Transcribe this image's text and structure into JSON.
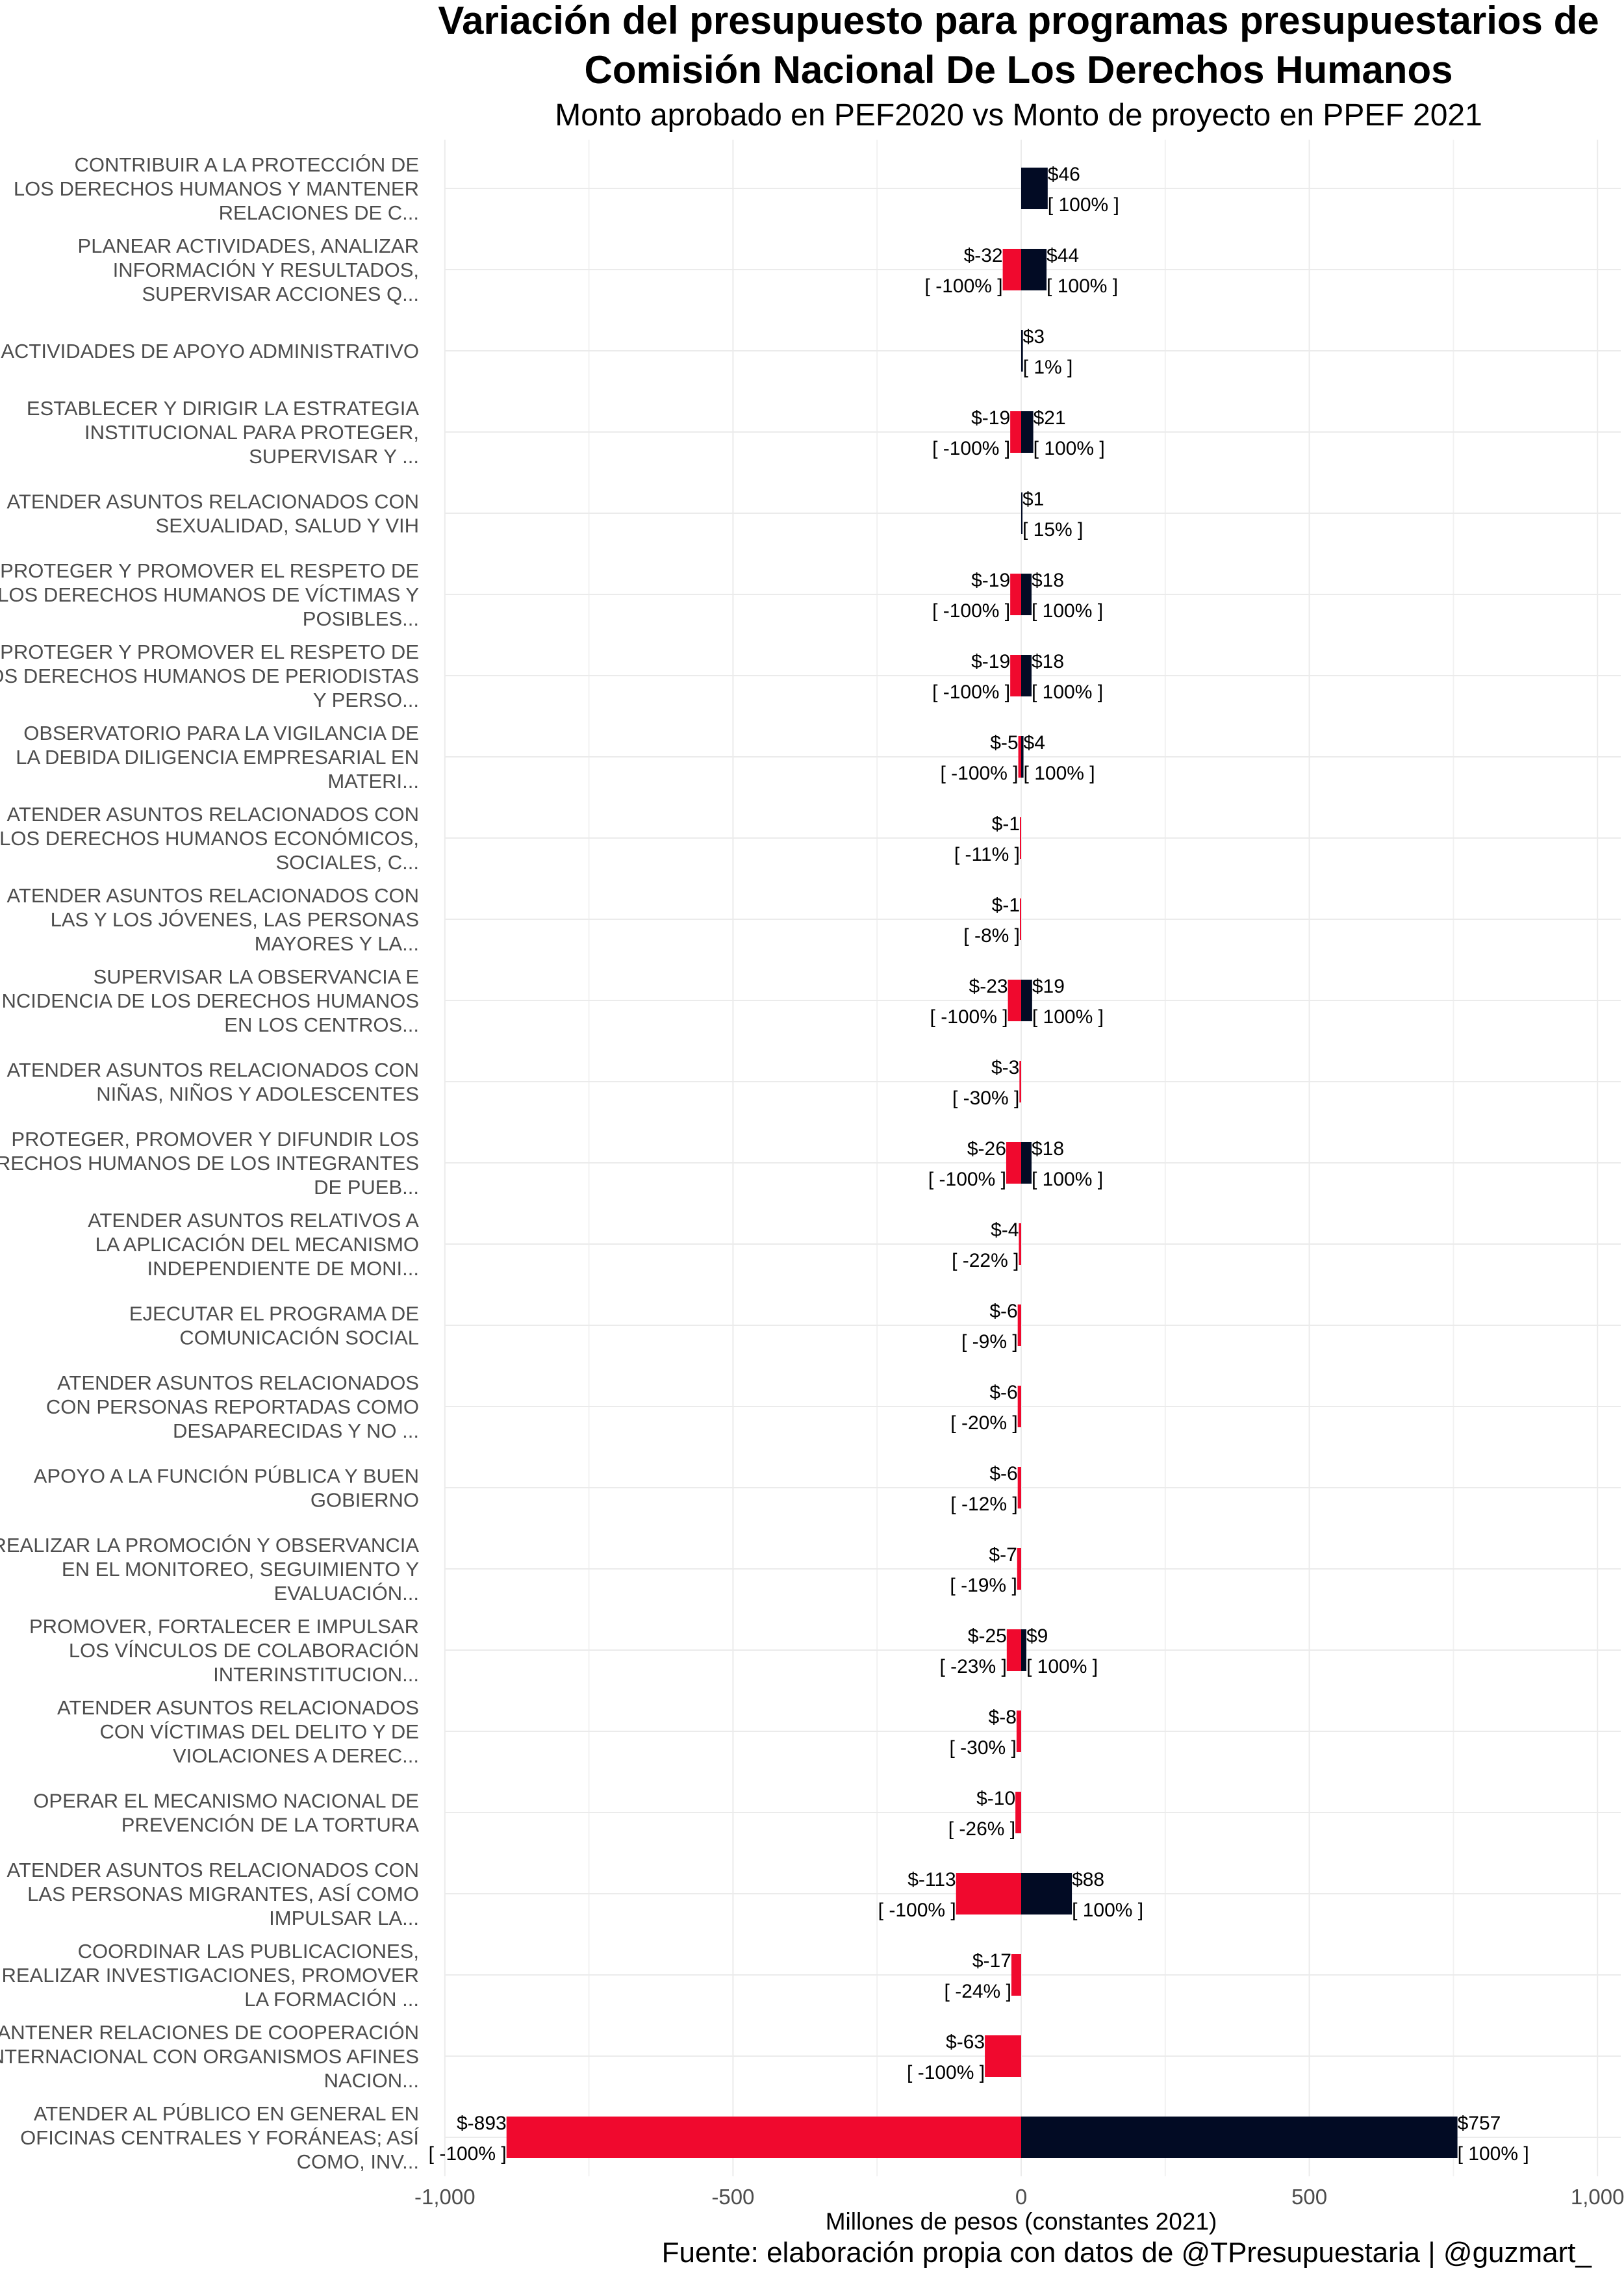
{
  "chart_data": {
    "type": "bar",
    "title_line1": "Variación del presupuesto para programas presupuestarios de",
    "title_line2": "Comisión Nacional De Los Derechos Humanos",
    "subtitle": "Monto aprobado en PEF2020 vs Monto de proyecto en PPEF 2021",
    "xlabel": "Millones de pesos (constantes 2021)",
    "caption": "Fuente: elaboración propia con datos de @TPresupuestaria | @guzmart_",
    "xlim": [
      -1000,
      1000
    ],
    "xticks": [
      -1000,
      -500,
      0,
      500,
      1000
    ],
    "xtick_labels": [
      "-1,000",
      "-500",
      "0",
      "500",
      "1,000"
    ],
    "grid": true,
    "colors": {
      "negative": "#f0092e",
      "positive": "#020b24"
    },
    "categories": [
      {
        "label": [
          "CONTRIBUIR A LA PROTECCIÓN DE",
          "LOS DERECHOS HUMANOS Y MANTENER",
          "RELACIONES DE C..."
        ],
        "negative": null,
        "positive": 46,
        "neg_label": "",
        "neg_pct": "",
        "pos_label": "$46",
        "pos_pct": "[ 100% ]"
      },
      {
        "label": [
          "PLANEAR ACTIVIDADES, ANALIZAR",
          "INFORMACIÓN Y RESULTADOS,",
          "SUPERVISAR ACCIONES Q..."
        ],
        "negative": -32,
        "positive": 44,
        "neg_label": "$-32",
        "neg_pct": "[ -100% ]",
        "pos_label": "$44",
        "pos_pct": "[ 100% ]"
      },
      {
        "label": [
          "ACTIVIDADES DE APOYO ADMINISTRATIVO"
        ],
        "negative": null,
        "positive": 3,
        "neg_label": "",
        "neg_pct": "",
        "pos_label": "$3",
        "pos_pct": "[ 1% ]"
      },
      {
        "label": [
          "ESTABLECER Y DIRIGIR LA ESTRATEGIA",
          "INSTITUCIONAL PARA PROTEGER,",
          "SUPERVISAR Y ..."
        ],
        "negative": -19,
        "positive": 21,
        "neg_label": "$-19",
        "neg_pct": "[ -100% ]",
        "pos_label": "$21",
        "pos_pct": "[ 100% ]"
      },
      {
        "label": [
          "ATENDER ASUNTOS RELACIONADOS CON",
          "SEXUALIDAD, SALUD Y VIH"
        ],
        "negative": null,
        "positive": 1,
        "neg_label": "",
        "neg_pct": "",
        "pos_label": "$1",
        "pos_pct": "[ 15% ]"
      },
      {
        "label": [
          "PROTEGER Y PROMOVER EL RESPETO DE",
          "LOS DERECHOS HUMANOS DE VÍCTIMAS Y",
          "POSIBLES..."
        ],
        "negative": -19,
        "positive": 18,
        "neg_label": "$-19",
        "neg_pct": "[ -100% ]",
        "pos_label": "$18",
        "pos_pct": "[ 100% ]"
      },
      {
        "label": [
          "PROTEGER Y PROMOVER EL RESPETO DE",
          "LOS DERECHOS HUMANOS DE PERIODISTAS",
          "Y PERSO..."
        ],
        "negative": -19,
        "positive": 18,
        "neg_label": "$-19",
        "neg_pct": "[ -100% ]",
        "pos_label": "$18",
        "pos_pct": "[ 100% ]"
      },
      {
        "label": [
          "OBSERVATORIO PARA LA VIGILANCIA DE",
          "LA DEBIDA DILIGENCIA EMPRESARIAL EN",
          "MATERI..."
        ],
        "negative": -5,
        "positive": 4,
        "neg_label": "$-5",
        "neg_pct": "[ -100% ]",
        "pos_label": "$4",
        "pos_pct": "[ 100% ]"
      },
      {
        "label": [
          "ATENDER ASUNTOS RELACIONADOS CON",
          "LOS DERECHOS HUMANOS ECONÓMICOS,",
          "SOCIALES, C..."
        ],
        "negative": -1,
        "positive": null,
        "neg_label": "$-1",
        "neg_pct": "[ -11% ]",
        "pos_label": "",
        "pos_pct": ""
      },
      {
        "label": [
          "ATENDER ASUNTOS RELACIONADOS CON",
          "LAS Y LOS JÓVENES, LAS PERSONAS",
          "MAYORES Y LA..."
        ],
        "negative": -1,
        "positive": null,
        "neg_label": "$-1",
        "neg_pct": "[ -8% ]",
        "pos_label": "",
        "pos_pct": ""
      },
      {
        "label": [
          "SUPERVISAR LA OBSERVANCIA E",
          "INCIDENCIA DE LOS DERECHOS HUMANOS",
          "EN LOS CENTROS..."
        ],
        "negative": -23,
        "positive": 19,
        "neg_label": "$-23",
        "neg_pct": "[ -100% ]",
        "pos_label": "$19",
        "pos_pct": "[ 100% ]"
      },
      {
        "label": [
          "ATENDER ASUNTOS RELACIONADOS CON",
          "NIÑAS, NIÑOS Y ADOLESCENTES"
        ],
        "negative": -3,
        "positive": null,
        "neg_label": "$-3",
        "neg_pct": "[ -30% ]",
        "pos_label": "",
        "pos_pct": ""
      },
      {
        "label": [
          "PROTEGER, PROMOVER Y DIFUNDIR LOS",
          "DERECHOS HUMANOS DE LOS INTEGRANTES",
          "DE PUEB..."
        ],
        "negative": -26,
        "positive": 18,
        "neg_label": "$-26",
        "neg_pct": "[ -100% ]",
        "pos_label": "$18",
        "pos_pct": "[ 100% ]"
      },
      {
        "label": [
          "ATENDER ASUNTOS RELATIVOS A",
          "LA APLICACIÓN DEL MECANISMO",
          "INDEPENDIENTE DE MONI..."
        ],
        "negative": -4,
        "positive": null,
        "neg_label": "$-4",
        "neg_pct": "[ -22% ]",
        "pos_label": "",
        "pos_pct": ""
      },
      {
        "label": [
          "EJECUTAR EL PROGRAMA DE",
          "COMUNICACIÓN SOCIAL"
        ],
        "negative": -6,
        "positive": null,
        "neg_label": "$-6",
        "neg_pct": "[ -9% ]",
        "pos_label": "",
        "pos_pct": ""
      },
      {
        "label": [
          "ATENDER ASUNTOS RELACIONADOS",
          "CON PERSONAS REPORTADAS COMO",
          "DESAPARECIDAS Y NO ..."
        ],
        "negative": -6,
        "positive": null,
        "neg_label": "$-6",
        "neg_pct": "[ -20% ]",
        "pos_label": "",
        "pos_pct": ""
      },
      {
        "label": [
          "APOYO A LA FUNCIÓN PÚBLICA Y BUEN",
          "GOBIERNO"
        ],
        "negative": -6,
        "positive": null,
        "neg_label": "$-6",
        "neg_pct": "[ -12% ]",
        "pos_label": "",
        "pos_pct": ""
      },
      {
        "label": [
          "REALIZAR LA PROMOCIÓN Y OBSERVANCIA",
          "EN EL MONITOREO, SEGUIMIENTO Y",
          "EVALUACIÓN..."
        ],
        "negative": -7,
        "positive": null,
        "neg_label": "$-7",
        "neg_pct": "[ -19% ]",
        "pos_label": "",
        "pos_pct": ""
      },
      {
        "label": [
          "PROMOVER, FORTALECER E IMPULSAR",
          "LOS VÍNCULOS DE COLABORACIÓN",
          "INTERINSTITUCION..."
        ],
        "negative": -25,
        "positive": 9,
        "neg_label": "$-25",
        "neg_pct": "[ -23% ]",
        "pos_label": "$9",
        "pos_pct": "[ 100% ]"
      },
      {
        "label": [
          "ATENDER ASUNTOS RELACIONADOS",
          "CON VÍCTIMAS DEL DELITO Y DE",
          "VIOLACIONES A DEREC..."
        ],
        "negative": -8,
        "positive": null,
        "neg_label": "$-8",
        "neg_pct": "[ -30% ]",
        "pos_label": "",
        "pos_pct": ""
      },
      {
        "label": [
          "OPERAR EL MECANISMO NACIONAL DE",
          "PREVENCIÓN DE LA TORTURA"
        ],
        "negative": -10,
        "positive": null,
        "neg_label": "$-10",
        "neg_pct": "[ -26% ]",
        "pos_label": "",
        "pos_pct": ""
      },
      {
        "label": [
          "ATENDER ASUNTOS RELACIONADOS CON",
          "LAS PERSONAS MIGRANTES, ASÍ COMO",
          "IMPULSAR LA..."
        ],
        "negative": -113,
        "positive": 88,
        "neg_label": "$-113",
        "neg_pct": "[ -100% ]",
        "pos_label": "$88",
        "pos_pct": "[ 100% ]"
      },
      {
        "label": [
          "COORDINAR LAS PUBLICACIONES,",
          "REALIZAR INVESTIGACIONES, PROMOVER",
          "LA FORMACIÓN ..."
        ],
        "negative": -17,
        "positive": null,
        "neg_label": "$-17",
        "neg_pct": "[ -24% ]",
        "pos_label": "",
        "pos_pct": ""
      },
      {
        "label": [
          "MANTENER RELACIONES DE COOPERACIÓN",
          "INTERNACIONAL CON ORGANISMOS AFINES",
          "NACION..."
        ],
        "negative": -63,
        "positive": null,
        "neg_label": "$-63",
        "neg_pct": "[ -100% ]",
        "pos_label": "",
        "pos_pct": ""
      },
      {
        "label": [
          "ATENDER AL PÚBLICO EN GENERAL EN",
          "OFICINAS CENTRALES Y FORÁNEAS; ASÍ",
          "COMO, INV..."
        ],
        "negative": -893,
        "positive": 757,
        "neg_label": "$-893",
        "neg_pct": "[ -100% ]",
        "pos_label": "$757",
        "pos_pct": "[ 100% ]"
      }
    ]
  }
}
